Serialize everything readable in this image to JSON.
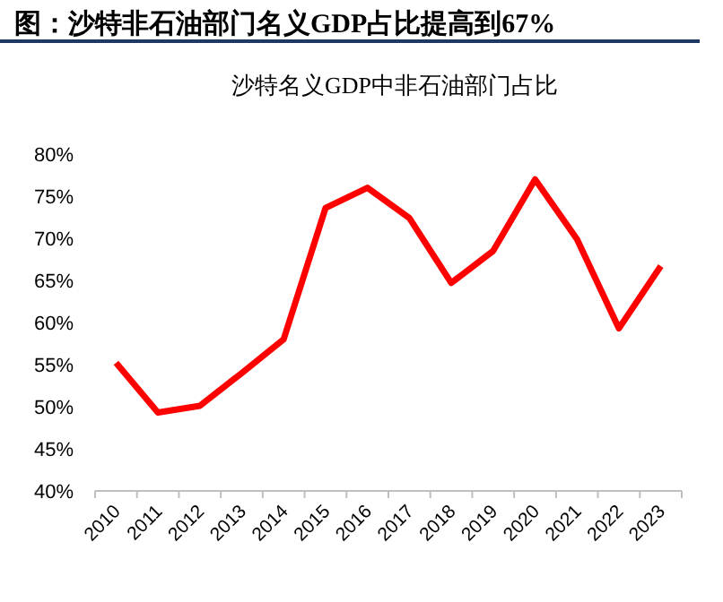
{
  "chart_data": {
    "type": "line",
    "title": "图：沙特非石油部门名义GDP占比提高到67%",
    "subtitle": "沙特名义GDP中非石油部门占比",
    "categories": [
      "2010",
      "2011",
      "2012",
      "2013",
      "2014",
      "2015",
      "2016",
      "2017",
      "2018",
      "2019",
      "2020",
      "2021",
      "2022",
      "2023"
    ],
    "series": [
      {
        "color": "#ff0000",
        "values": [
          55.2,
          49.3,
          50.1,
          54.0,
          58.0,
          73.6,
          76.0,
          72.4,
          64.7,
          68.5,
          77.0,
          69.9,
          59.3,
          66.7
        ]
      }
    ],
    "ylim": [
      40,
      80
    ],
    "yticks": [
      {
        "value": 40,
        "label": "40%"
      },
      {
        "value": 45,
        "label": "45%"
      },
      {
        "value": 50,
        "label": "50%"
      },
      {
        "value": 55,
        "label": "55%"
      },
      {
        "value": 60,
        "label": "60%"
      },
      {
        "value": 65,
        "label": "65%"
      },
      {
        "value": 70,
        "label": "70%"
      },
      {
        "value": 75,
        "label": "75%"
      },
      {
        "value": 80,
        "label": "80%"
      }
    ],
    "marker": "none",
    "line_style": "solid"
  }
}
